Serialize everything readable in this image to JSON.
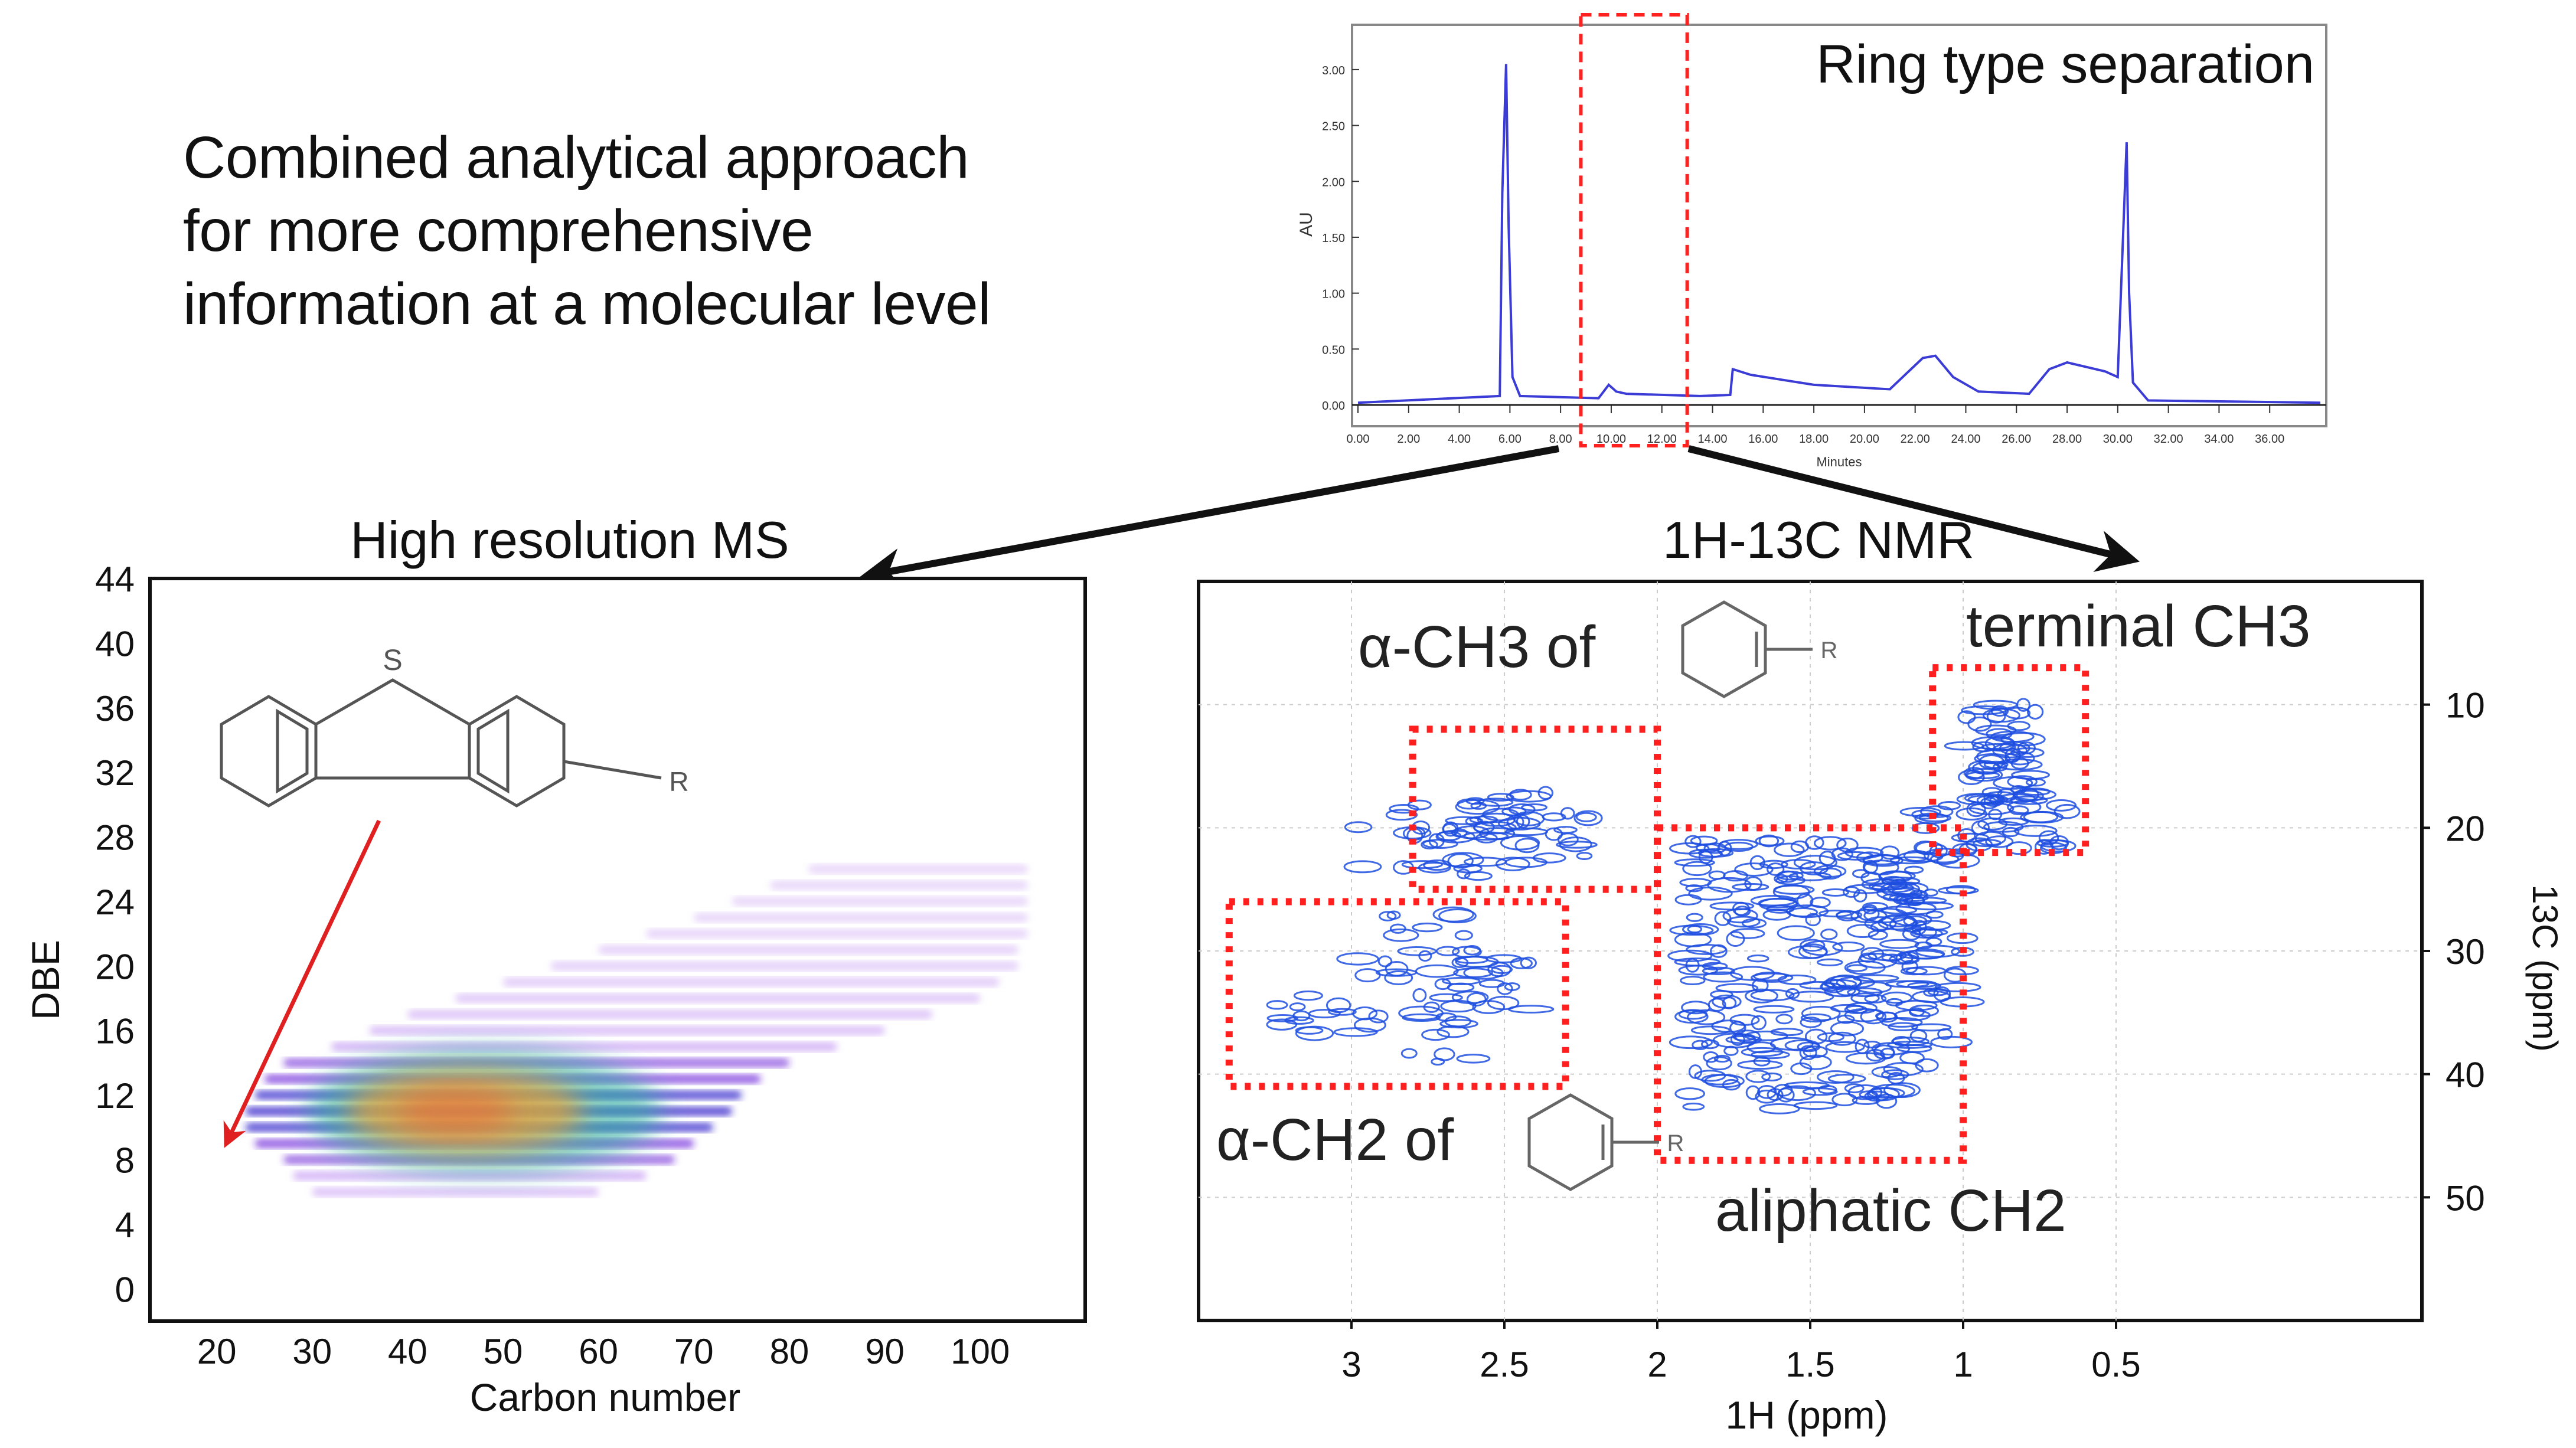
{
  "headline": {
    "line1": "Combined analytical approach",
    "line2": "for more comprehensive",
    "line3": "information at a molecular level"
  },
  "chart_data": [
    {
      "type": "line",
      "panel": "chromatogram",
      "title": "Ring type separation",
      "xlabel": "Minutes",
      "ylabel": "AU",
      "xlim": [
        0,
        38
      ],
      "ylim": [
        0,
        3.2
      ],
      "x_ticks": [
        "0.00",
        "2.00",
        "4.00",
        "6.00",
        "8.00",
        "10.00",
        "12.00",
        "14.00",
        "16.00",
        "18.00",
        "20.00",
        "22.00",
        "24.00",
        "26.00",
        "28.00",
        "30.00",
        "32.00",
        "34.00",
        "36.00"
      ],
      "y_ticks": [
        "0.00",
        "0.50",
        "1.00",
        "1.50",
        "2.00",
        "2.50",
        "3.00"
      ],
      "series": [
        {
          "color": "#3b3bd6",
          "x": [
            0,
            5.6,
            5.7,
            5.85,
            5.95,
            6.1,
            6.4,
            9.5,
            9.9,
            10.2,
            10.6,
            13.5,
            14.7,
            14.8,
            15.5,
            18,
            21,
            22.3,
            22.8,
            23.5,
            24.5,
            26.5,
            27.3,
            28,
            29.5,
            30,
            30.35,
            30.45,
            30.6,
            31.2,
            38
          ],
          "y": [
            0.02,
            0.08,
            1.9,
            3.05,
            1.6,
            0.25,
            0.08,
            0.06,
            0.18,
            0.12,
            0.1,
            0.08,
            0.09,
            0.32,
            0.27,
            0.18,
            0.14,
            0.42,
            0.44,
            0.25,
            0.12,
            0.1,
            0.32,
            0.38,
            0.3,
            0.25,
            2.35,
            1.0,
            0.2,
            0.04,
            0.02
          ]
        }
      ],
      "highlight_box": {
        "x_range": [
          8.8,
          13.0
        ],
        "style": "red-dashed"
      }
    },
    {
      "type": "heatmap",
      "panel": "high-resolution-ms",
      "title": "High resolution MS",
      "xlabel": "Carbon number",
      "ylabel": "DBE",
      "xlim": [
        13,
        111
      ],
      "ylim": [
        -2,
        44
      ],
      "x_ticks": [
        "20",
        "30",
        "40",
        "50",
        "60",
        "70",
        "80",
        "90",
        "100"
      ],
      "y_ticks": [
        "0",
        "4",
        "8",
        "12",
        "16",
        "20",
        "24",
        "28",
        "32",
        "36",
        "40",
        "44"
      ],
      "structure_label": "S",
      "substituent_label": "R",
      "band_rows": [
        {
          "dbe": 6,
          "c_min": 30,
          "c_max": 60,
          "intensity": 0.35
        },
        {
          "dbe": 7,
          "c_min": 28,
          "c_max": 65,
          "intensity": 0.55
        },
        {
          "dbe": 8,
          "c_min": 27,
          "c_max": 68,
          "intensity": 0.7
        },
        {
          "dbe": 9,
          "c_min": 24,
          "c_max": 70,
          "intensity": 0.85
        },
        {
          "dbe": 10,
          "c_min": 23,
          "c_max": 72,
          "intensity": 0.95
        },
        {
          "dbe": 11,
          "c_min": 23,
          "c_max": 74,
          "intensity": 1.0
        },
        {
          "dbe": 12,
          "c_min": 24,
          "c_max": 75,
          "intensity": 0.95
        },
        {
          "dbe": 13,
          "c_min": 25,
          "c_max": 77,
          "intensity": 0.85
        },
        {
          "dbe": 14,
          "c_min": 27,
          "c_max": 80,
          "intensity": 0.7
        },
        {
          "dbe": 15,
          "c_min": 32,
          "c_max": 85,
          "intensity": 0.55
        },
        {
          "dbe": 16,
          "c_min": 36,
          "c_max": 90,
          "intensity": 0.42
        },
        {
          "dbe": 17,
          "c_min": 40,
          "c_max": 95,
          "intensity": 0.34
        },
        {
          "dbe": 18,
          "c_min": 45,
          "c_max": 100,
          "intensity": 0.28
        },
        {
          "dbe": 19,
          "c_min": 50,
          "c_max": 102,
          "intensity": 0.22
        },
        {
          "dbe": 20,
          "c_min": 55,
          "c_max": 104,
          "intensity": 0.18
        },
        {
          "dbe": 21,
          "c_min": 60,
          "c_max": 104,
          "intensity": 0.15
        },
        {
          "dbe": 22,
          "c_min": 65,
          "c_max": 105,
          "intensity": 0.12
        },
        {
          "dbe": 23,
          "c_min": 70,
          "c_max": 105,
          "intensity": 0.1
        },
        {
          "dbe": 24,
          "c_min": 74,
          "c_max": 105,
          "intensity": 0.08
        },
        {
          "dbe": 25,
          "c_min": 78,
          "c_max": 105,
          "intensity": 0.07
        },
        {
          "dbe": 26,
          "c_min": 82,
          "c_max": 105,
          "intensity": 0.06
        }
      ],
      "arrow": {
        "from": [
          37,
          29
        ],
        "to": [
          21,
          9
        ],
        "color": "#e02020"
      }
    },
    {
      "type": "scatter",
      "panel": "hsqc-nmr",
      "title_prefix": "1H-13C NMR",
      "xlabel": "1H (ppm)",
      "ylabel": "13C (ppm)",
      "x_reversed": true,
      "y_reversed": true,
      "xlim": [
        3.5,
        -0.5
      ],
      "ylim": [
        60,
        0
      ],
      "x_ticks": [
        "3",
        "2.5",
        "2",
        "1.5",
        "1",
        "0.5"
      ],
      "y_ticks": [
        "10",
        "20",
        "30",
        "40",
        "50"
      ],
      "annotation_labels": {
        "alpha_ch3": "α-CH3 of",
        "alpha_ch2": "α-CH2 of",
        "terminal_ch3": "terminal CH3",
        "aliphatic_ch2": "aliphatic CH2",
        "ring_substituent": "R"
      },
      "highlight_boxes": [
        {
          "name": "alpha-ch3-region",
          "x_range": [
            2.8,
            2.0
          ],
          "y_range": [
            12,
            25
          ]
        },
        {
          "name": "alpha-ch2-region",
          "x_range": [
            3.4,
            2.3
          ],
          "y_range": [
            26,
            41
          ]
        },
        {
          "name": "aliphatic-ch2-region",
          "x_range": [
            2.0,
            1.0
          ],
          "y_range": [
            20,
            47
          ]
        },
        {
          "name": "terminal-ch3-region",
          "x_range": [
            1.1,
            0.6
          ],
          "y_range": [
            7,
            22
          ]
        }
      ],
      "peak_clusters": [
        {
          "x": 2.75,
          "y": 21,
          "spread_x": 0.25,
          "spread_y": 3,
          "count": 30
        },
        {
          "x": 2.45,
          "y": 20,
          "spread_x": 0.25,
          "spread_y": 3,
          "count": 40
        },
        {
          "x": 3.15,
          "y": 35,
          "spread_x": 0.12,
          "spread_y": 2,
          "count": 12
        },
        {
          "x": 2.8,
          "y": 33,
          "spread_x": 0.2,
          "spread_y": 6,
          "count": 40
        },
        {
          "x": 2.55,
          "y": 33,
          "spread_x": 0.15,
          "spread_y": 3,
          "count": 20
        },
        {
          "x": 1.5,
          "y": 32,
          "spread_x": 0.4,
          "spread_y": 11,
          "count": 260
        },
        {
          "x": 1.2,
          "y": 30,
          "spread_x": 0.2,
          "spread_y": 8,
          "count": 80
        },
        {
          "x": 0.88,
          "y": 14,
          "spread_x": 0.12,
          "spread_y": 4,
          "count": 60
        },
        {
          "x": 0.9,
          "y": 20,
          "spread_x": 0.25,
          "spread_y": 2,
          "count": 40
        }
      ]
    }
  ]
}
